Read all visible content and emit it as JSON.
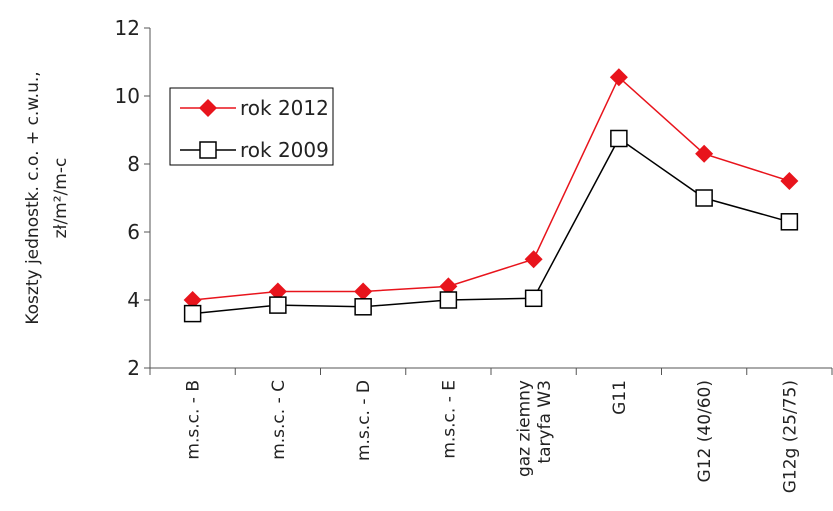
{
  "chart_data": {
    "type": "line",
    "y_label": [
      "Koszty jednostk. c.o. + c.w.u.,",
      "zł/m²/m-c"
    ],
    "categories": [
      "m.s.c. - B",
      "m.s.c. - C",
      "m.s.c. - D",
      "m.s.c. - E",
      "gaz ziemny\ntaryfa W3",
      "G11",
      "G12 (40/60)",
      "G12g (25/75)"
    ],
    "series": [
      {
        "name": "rok 2012",
        "color": "#e8141c",
        "marker": "diamond",
        "values": [
          4.0,
          4.25,
          4.25,
          4.4,
          5.2,
          10.55,
          8.3,
          7.5
        ]
      },
      {
        "name": "rok 2009",
        "color": "#000000",
        "marker": "square",
        "values": [
          3.6,
          3.85,
          3.8,
          4.0,
          4.05,
          8.75,
          7.0,
          6.3
        ]
      }
    ],
    "ylim": [
      2,
      12
    ],
    "yticks": [
      2,
      4,
      6,
      8,
      10,
      12
    ],
    "grid": false,
    "legend": "upper left"
  }
}
